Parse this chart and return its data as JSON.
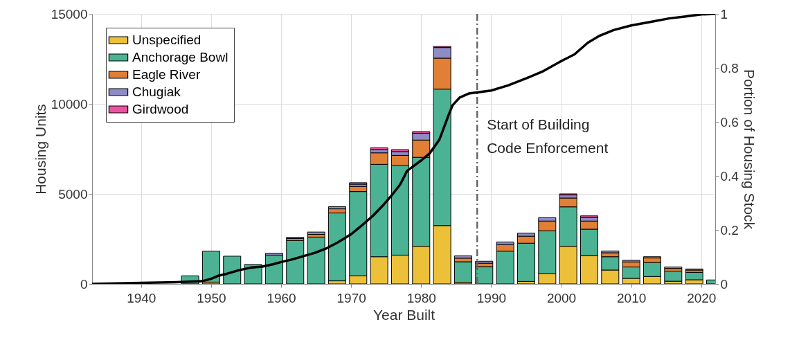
{
  "chart_data": {
    "type": "bar",
    "stacked": true,
    "xlabel": "Year Built",
    "ylabel": "Housing Units",
    "y2label": "Portion of Housing Stock",
    "x": [
      1947,
      1950,
      1953,
      1956,
      1959,
      1962,
      1965,
      1968,
      1971,
      1974,
      1977,
      1980,
      1983,
      1986,
      1989,
      1992,
      1995,
      1998,
      2001,
      2004,
      2007,
      2010,
      2013,
      2016,
      2019,
      2022
    ],
    "xlim": [
      1933,
      2022
    ],
    "xticks": [
      1940,
      1950,
      1960,
      1970,
      1980,
      1990,
      2000,
      2010,
      2020
    ],
    "ylim": [
      0,
      15000
    ],
    "yticks": [
      0,
      5000,
      10000,
      15000
    ],
    "y2lim": [
      0,
      1
    ],
    "y2ticks": [
      0,
      0.2,
      0.4,
      0.6,
      0.8,
      1
    ],
    "grid": true,
    "legend": "top left",
    "series": [
      {
        "name": "Unspecified",
        "color": "#edc03a",
        "values": [
          0,
          100,
          0,
          0,
          0,
          null,
          null,
          170,
          450,
          1510,
          1600,
          2090,
          3240,
          90,
          0,
          0,
          140,
          560,
          2090,
          1580,
          770,
          310,
          410,
          150,
          230,
          0
        ]
      },
      {
        "name": "Anchorage Bowl",
        "color": "#4bb393",
        "values": [
          450,
          1720,
          1540,
          1080,
          1600,
          2410,
          2600,
          3770,
          4680,
          5130,
          4960,
          4940,
          7580,
          1140,
          960,
          1820,
          2120,
          2390,
          2190,
          1460,
          740,
          630,
          780,
          560,
          410,
          220
        ]
      },
      {
        "name": "Eagle River",
        "color": "#e07f35",
        "values": [
          0,
          0,
          0,
          0,
          null,
          110,
          150,
          230,
          280,
          640,
          580,
          960,
          1720,
          200,
          190,
          360,
          390,
          540,
          490,
          450,
          220,
          280,
          250,
          150,
          130,
          0
        ]
      },
      {
        "name": "Chugiak",
        "color": "#8f8bc4",
        "values": [
          0,
          0,
          0,
          0,
          100,
          70,
          130,
          120,
          130,
          180,
          210,
          380,
          590,
          130,
          110,
          150,
          170,
          190,
          170,
          200,
          100,
          90,
          70,
          80,
          60,
          0
        ]
      },
      {
        "name": "Girdwood",
        "color": "#eb53a0",
        "values": [
          0,
          0,
          0,
          0,
          0,
          0,
          0,
          0,
          80,
          100,
          110,
          90,
          60,
          0,
          0,
          0,
          0,
          0,
          60,
          90,
          0,
          0,
          0,
          0,
          0,
          0
        ]
      },
      {
        "type": "line",
        "axis": "y2",
        "color": "#000000",
        "x": [
          1933,
          1940,
          1945.7,
          1948.7,
          1950,
          1951,
          1952.3,
          1954,
          1955.6,
          1957.3,
          1958.9,
          1960,
          1961.5,
          1963.2,
          1964.8,
          1966.5,
          1968.1,
          1970,
          1971.4,
          1973.1,
          1974.7,
          1975.7,
          1977,
          1978,
          1980,
          1981.2,
          1982.6,
          1983.9,
          1984.5,
          1985.5,
          1986.8,
          1990,
          1992.4,
          1995,
          1997.3,
          2000,
          2001.9,
          2003.8,
          2005.5,
          2007.5,
          2010,
          2012.7,
          2015.4,
          2018,
          2020,
          2022
        ],
        "values": [
          0,
          0.004,
          0.007,
          0.01,
          0.019,
          0.03,
          0.038,
          0.051,
          0.06,
          0.064,
          0.073,
          0.081,
          0.09,
          0.103,
          0.115,
          0.132,
          0.154,
          0.184,
          0.214,
          0.252,
          0.295,
          0.325,
          0.368,
          0.419,
          0.457,
          0.483,
          0.534,
          0.624,
          0.662,
          0.69,
          0.705,
          0.716,
          0.735,
          0.761,
          0.786,
          0.825,
          0.85,
          0.893,
          0.919,
          0.94,
          0.957,
          0.97,
          0.983,
          0.991,
          0.998,
          1.0
        ]
      }
    ],
    "ref_lines": [
      {
        "axis": "x",
        "value": 1988,
        "label": "Start of Building\nCode Enforcement",
        "color": "#666666",
        "line_style": "dashdot"
      }
    ]
  }
}
